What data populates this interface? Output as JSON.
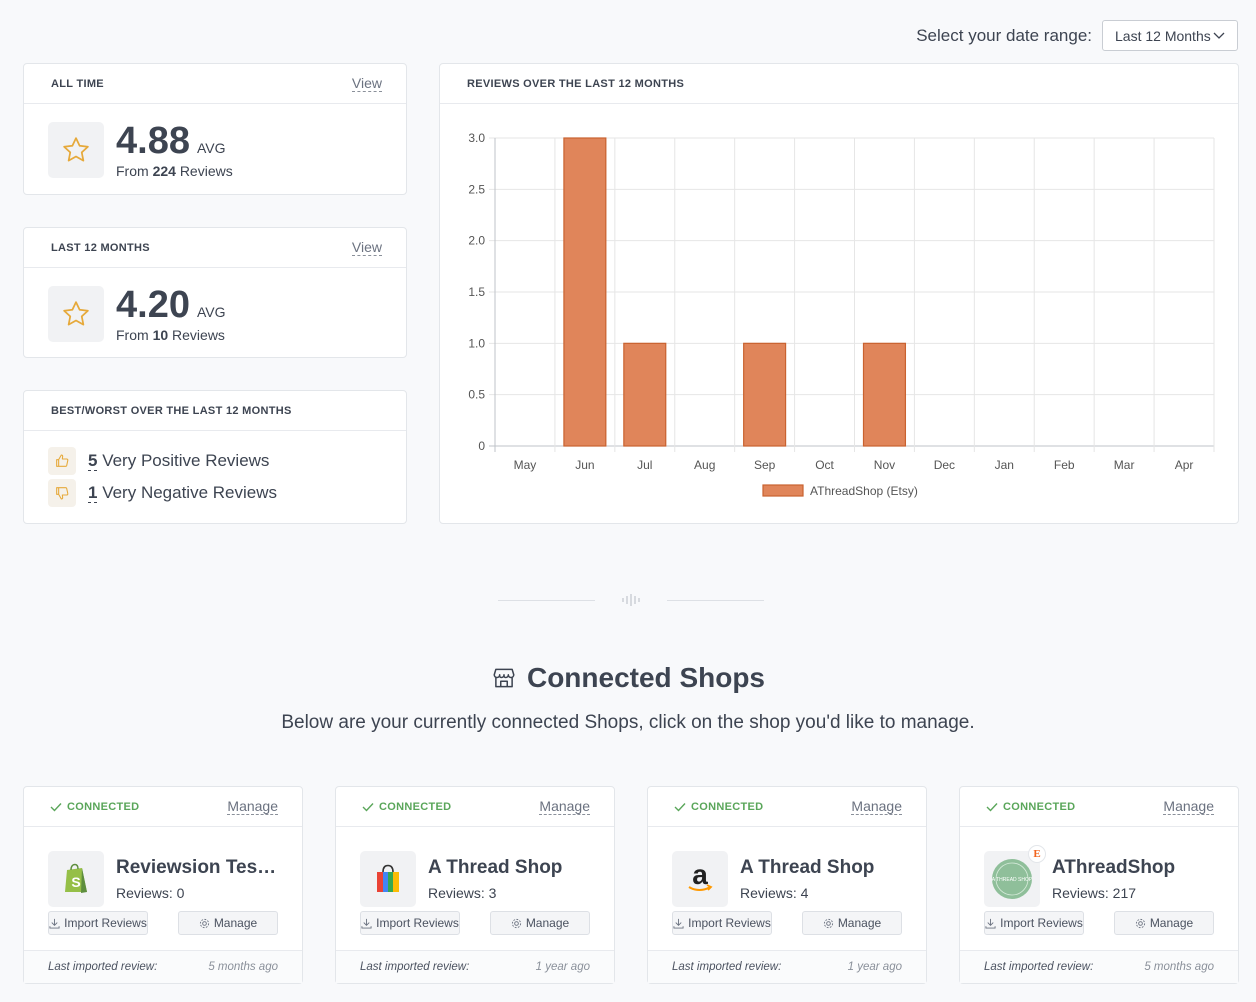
{
  "date_range": {
    "label": "Select your date range:",
    "selected": "Last 12 Months"
  },
  "all_time": {
    "title": "ALL TIME",
    "view": "View",
    "avg": "4.88",
    "avg_label": "AVG",
    "from_prefix": "From",
    "count": "224",
    "from_suffix": "Reviews"
  },
  "last12": {
    "title": "LAST 12 MONTHS",
    "view": "View",
    "avg": "4.20",
    "avg_label": "AVG",
    "from_prefix": "From",
    "count": "10",
    "from_suffix": "Reviews"
  },
  "best_worst": {
    "title": "BEST/WORST OVER THE LAST 12 MONTHS",
    "positive_count": "5",
    "positive_label": "Very Positive Reviews",
    "negative_count": "1",
    "negative_label": "Very Negative Reviews"
  },
  "chart": {
    "title": "REVIEWS OVER THE LAST 12 MONTHS"
  },
  "chart_data": {
    "type": "bar",
    "title": "REVIEWS OVER THE LAST 12 MONTHS",
    "categories": [
      "May",
      "Jun",
      "Jul",
      "Aug",
      "Sep",
      "Oct",
      "Nov",
      "Dec",
      "Jan",
      "Feb",
      "Mar",
      "Apr"
    ],
    "series": [
      {
        "name": "AThreadShop (Etsy)",
        "values": [
          0,
          3,
          1,
          0,
          1,
          0,
          1,
          0,
          0,
          0,
          0,
          0
        ]
      }
    ],
    "ylim": [
      0,
      3
    ],
    "yticks": [
      "0",
      "0.5",
      "1.0",
      "1.5",
      "2.0",
      "2.5",
      "3.0"
    ],
    "grid": true,
    "legend": "bottom",
    "color": "#e0855a"
  },
  "section": {
    "title": "Connected Shops",
    "subtitle": "Below are your currently connected Shops, click on the shop you'd like to manage."
  },
  "shops": [
    {
      "status": "CONNECTED",
      "manage": "Manage",
      "name": "Reviewsion Test ...",
      "reviews": "Reviews: 0",
      "import_btn": "Import Reviews",
      "manage_btn": "Manage",
      "last_label": "Last imported review:",
      "last_value": "5 months ago",
      "logo": "shopify-icon"
    },
    {
      "status": "CONNECTED",
      "manage": "Manage",
      "name": "A Thread Shop",
      "reviews": "Reviews: 3",
      "import_btn": "Import Reviews",
      "manage_btn": "Manage",
      "last_label": "Last imported review:",
      "last_value": "1 year ago",
      "logo": "google-shopping-icon"
    },
    {
      "status": "CONNECTED",
      "manage": "Manage",
      "name": "A Thread Shop",
      "reviews": "Reviews: 4",
      "import_btn": "Import Reviews",
      "manage_btn": "Manage",
      "last_label": "Last imported review:",
      "last_value": "1 year ago",
      "logo": "amazon-icon"
    },
    {
      "status": "CONNECTED",
      "manage": "Manage",
      "name": "AThreadShop",
      "reviews": "Reviews: 217",
      "import_btn": "Import Reviews",
      "manage_btn": "Manage",
      "last_label": "Last imported review:",
      "last_value": "5 months ago",
      "logo": "etsy-shop-icon",
      "logo_text": "A THREAD SHOP",
      "badge": "E"
    }
  ]
}
